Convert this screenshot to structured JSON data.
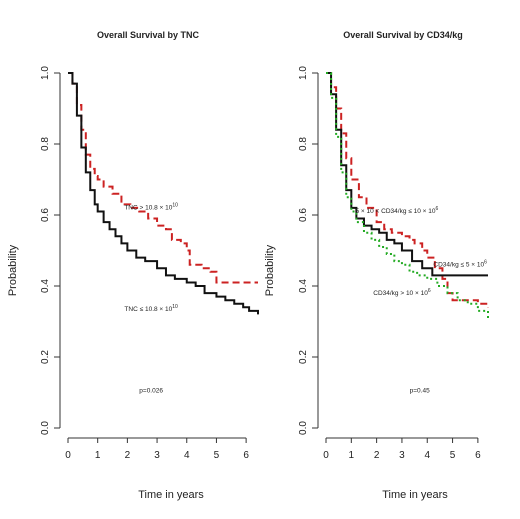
{
  "chart_data": [
    {
      "type": "line",
      "title": "Overall Survival by TNC",
      "xlabel": "Time in years",
      "ylabel": "Probability",
      "xlim": [
        0,
        6.4
      ],
      "ylim": [
        0,
        1
      ],
      "xticks": [
        0,
        1,
        2,
        3,
        4,
        5,
        6
      ],
      "yticks": [
        0.0,
        0.2,
        0.4,
        0.6,
        0.8,
        1.0
      ],
      "grid": false,
      "series": [
        {
          "name": "TNC > 10.8 × 10^10",
          "color": "#cc2222",
          "style": "dashed",
          "x": [
            0,
            0.15,
            0.3,
            0.45,
            0.6,
            0.75,
            0.9,
            1.0,
            1.2,
            1.5,
            1.8,
            2.1,
            2.4,
            2.7,
            3.0,
            3.3,
            3.5,
            3.8,
            4.0,
            4.1,
            4.5,
            4.8,
            5.0,
            5.5,
            6.4
          ],
          "y": [
            1.0,
            0.97,
            0.91,
            0.84,
            0.77,
            0.73,
            0.71,
            0.7,
            0.68,
            0.66,
            0.63,
            0.62,
            0.61,
            0.59,
            0.57,
            0.56,
            0.53,
            0.52,
            0.5,
            0.46,
            0.45,
            0.44,
            0.41,
            0.41,
            0.41
          ]
        },
        {
          "name": "TNC ≤ 10.8 × 10^10",
          "color": "#111111",
          "style": "solid",
          "x": [
            0,
            0.15,
            0.3,
            0.45,
            0.6,
            0.75,
            0.9,
            1.0,
            1.2,
            1.4,
            1.6,
            1.8,
            2.0,
            2.3,
            2.6,
            3.0,
            3.3,
            3.6,
            4.0,
            4.3,
            4.6,
            5.0,
            5.3,
            5.6,
            5.9,
            6.1,
            6.4
          ],
          "y": [
            1.0,
            0.97,
            0.88,
            0.79,
            0.72,
            0.67,
            0.63,
            0.61,
            0.58,
            0.56,
            0.54,
            0.52,
            0.5,
            0.48,
            0.47,
            0.45,
            0.43,
            0.42,
            0.41,
            0.4,
            0.38,
            0.37,
            0.36,
            0.35,
            0.34,
            0.33,
            0.32
          ]
        }
      ],
      "annotations": [
        {
          "text": "TNC > 10.8 × 10",
          "sup": "10",
          "x": 2.8,
          "y": 0.615
        },
        {
          "text": "TNC ≤ 10.8 × 10",
          "sup": "10",
          "x": 2.8,
          "y": 0.33
        },
        {
          "text": "p=0.026",
          "sup": "",
          "x": 2.8,
          "y": 0.1
        }
      ]
    },
    {
      "type": "line",
      "title": "Overall Survival by CD34/kg",
      "xlabel": "Time in years",
      "ylabel": "Probability",
      "xlim": [
        0,
        6.4
      ],
      "ylim": [
        0,
        1
      ],
      "xticks": [
        0,
        1,
        2,
        3,
        4,
        5,
        6
      ],
      "yticks": [
        0.0,
        0.2,
        0.4,
        0.6,
        0.8,
        1.0
      ],
      "grid": false,
      "series": [
        {
          "name": "5 × 10^6 < CD34/kg ≤ 10 × 10^6",
          "color": "#cc2222",
          "style": "dashed",
          "x": [
            0,
            0.2,
            0.4,
            0.6,
            0.8,
            1.0,
            1.3,
            1.6,
            2.0,
            2.3,
            2.6,
            3.0,
            3.3,
            3.5,
            3.8,
            4.0,
            4.3,
            4.6,
            4.8,
            5.0,
            5.5,
            6.0,
            6.4
          ],
          "y": [
            1.0,
            0.96,
            0.9,
            0.83,
            0.76,
            0.7,
            0.65,
            0.62,
            0.58,
            0.56,
            0.55,
            0.54,
            0.53,
            0.52,
            0.5,
            0.48,
            0.45,
            0.42,
            0.38,
            0.36,
            0.36,
            0.35,
            0.34
          ]
        },
        {
          "name": "CD34/kg ≤ 5 × 10^6",
          "color": "#111111",
          "style": "solid",
          "x": [
            0,
            0.2,
            0.4,
            0.6,
            0.8,
            1.0,
            1.2,
            1.5,
            1.8,
            2.1,
            2.4,
            2.7,
            3.0,
            3.4,
            3.8,
            4.2,
            4.6,
            5.0,
            6.4
          ],
          "y": [
            1.0,
            0.94,
            0.84,
            0.74,
            0.67,
            0.62,
            0.59,
            0.57,
            0.56,
            0.55,
            0.53,
            0.52,
            0.5,
            0.47,
            0.45,
            0.43,
            0.43,
            0.43,
            0.43
          ]
        },
        {
          "name": "CD34/kg > 10 × 10^6",
          "color": "#22aa22",
          "style": "dotted",
          "x": [
            0,
            0.2,
            0.4,
            0.6,
            0.8,
            1.0,
            1.2,
            1.5,
            1.8,
            2.1,
            2.4,
            2.7,
            3.0,
            3.3,
            3.6,
            4.0,
            4.4,
            4.8,
            5.2,
            5.6,
            6.0,
            6.4
          ],
          "y": [
            1.0,
            0.93,
            0.82,
            0.72,
            0.65,
            0.61,
            0.58,
            0.55,
            0.53,
            0.51,
            0.49,
            0.47,
            0.46,
            0.44,
            0.43,
            0.42,
            0.4,
            0.38,
            0.36,
            0.35,
            0.33,
            0.31
          ]
        }
      ],
      "annotations": [
        {
          "text": "5 × 10  < CD34/kg ≤ 10 × 10",
          "sup": "6",
          "x": 2.8,
          "y": 0.605
        },
        {
          "text": "CD34/kg ≤ 5 × 10",
          "sup": "6",
          "x": 5.3,
          "y": 0.455
        },
        {
          "text": "CD34/kg > 10 × 10",
          "sup": "6",
          "x": 3.0,
          "y": 0.375
        },
        {
          "text": "p=0.45",
          "sup": "",
          "x": 3.7,
          "y": 0.1
        }
      ]
    }
  ]
}
